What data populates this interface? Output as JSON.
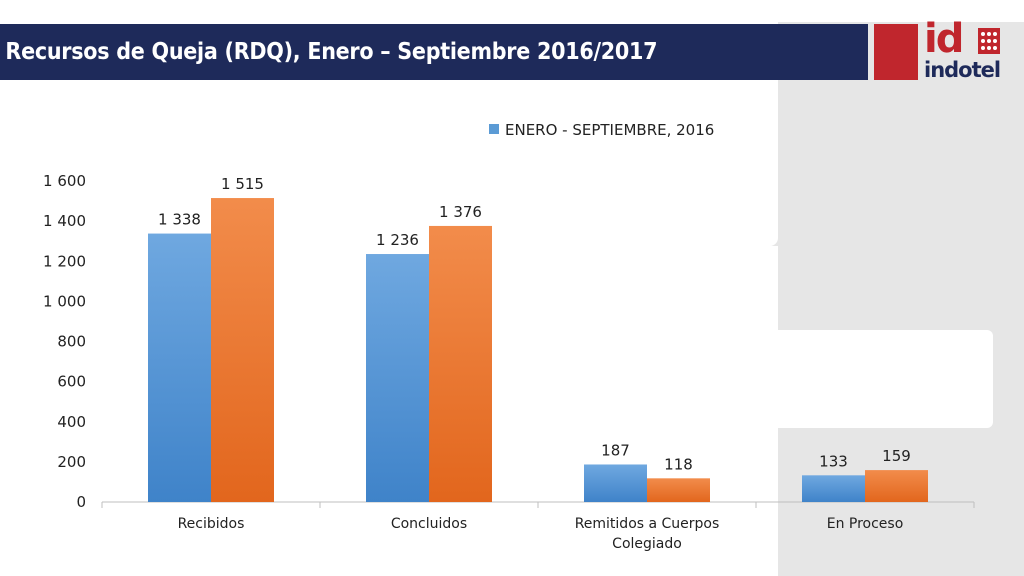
{
  "header": {
    "title": "Recursos de Queja (RDQ), Enero – Septiembre 2016/2017"
  },
  "logo": {
    "mark": "id",
    "name": "indotel"
  },
  "colors": {
    "title_bar": "#1e2a5a",
    "logo_red": "#c0262d",
    "series_2016": "#5b9bd5",
    "series_2017": "#ed7d31"
  },
  "chart_data": {
    "type": "bar",
    "categories": [
      "Recibidos",
      "Concluidos",
      "Remitidos a Cuerpos Colegiado",
      "En Proceso"
    ],
    "category_lines": [
      [
        "Recibidos"
      ],
      [
        "Concluidos"
      ],
      [
        "Remitidos a Cuerpos",
        "Colegiado"
      ],
      [
        "En Proceso"
      ]
    ],
    "series": [
      {
        "name": "ENERO - SEPTIEMBRE, 2016",
        "values": [
          1338,
          1236,
          187,
          133
        ],
        "labels": [
          "1 338",
          "1 236",
          "187",
          "133"
        ]
      },
      {
        "values": [
          1515,
          1376,
          118,
          159
        ],
        "labels": [
          "1 515",
          "1 376",
          "118",
          "159"
        ]
      }
    ],
    "yticks": [
      "0",
      "200",
      "400",
      "600",
      "800",
      "1 000",
      "1 200",
      "1 400",
      "1 600"
    ],
    "ylim": [
      0,
      1600
    ],
    "legend": "top"
  }
}
